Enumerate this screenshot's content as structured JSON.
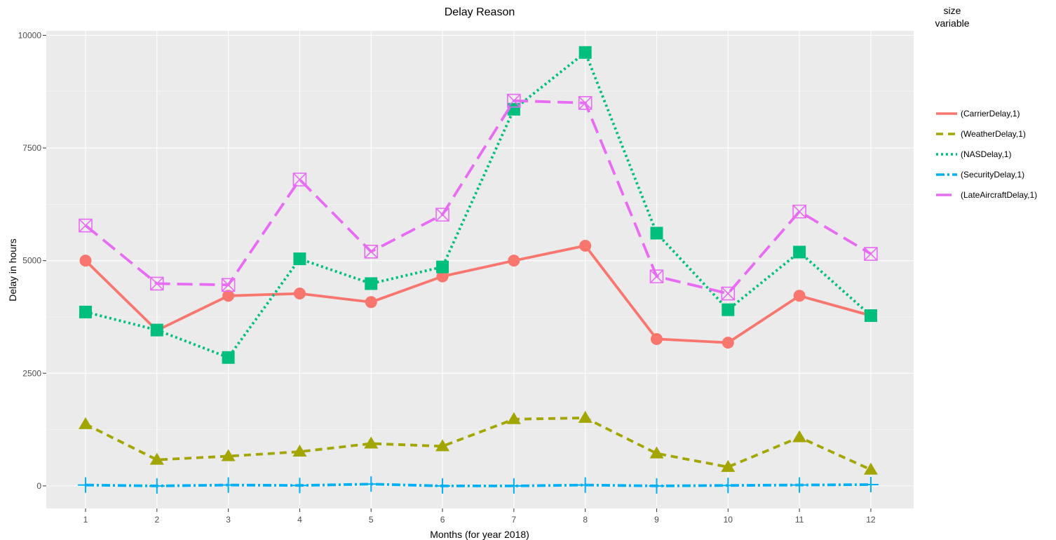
{
  "chart_data": {
    "type": "line",
    "title": "Delay Reason",
    "xlabel": "Months (for year 2018)",
    "ylabel": "Delay in hours",
    "categories": [
      "1",
      "2",
      "3",
      "4",
      "5",
      "6",
      "7",
      "8",
      "9",
      "10",
      "11",
      "12"
    ],
    "xlim": [
      0.45,
      12.6
    ],
    "ylim": [
      -500,
      10100
    ],
    "yticks": [
      0,
      2500,
      5000,
      7500,
      10000
    ],
    "grid": true,
    "legend": {
      "title_line1": "size",
      "title_line2": "variable",
      "placement": "right"
    },
    "series": [
      {
        "name": "(CarrierDelay,1)",
        "color": "#f8766d",
        "dash": "solid",
        "marker": "circle",
        "values": [
          5000,
          3450,
          4220,
          4270,
          4080,
          4650,
          5000,
          5330,
          3260,
          3180,
          4220,
          3780
        ]
      },
      {
        "name": "(WeatherDelay,1)",
        "color": "#a3a500",
        "dash": "dash",
        "marker": "triangle",
        "values": [
          1370,
          580,
          660,
          760,
          940,
          880,
          1480,
          1510,
          720,
          420,
          1080,
          360
        ]
      },
      {
        "name": "(NASDelay,1)",
        "color": "#00bf7d",
        "dash": "dot",
        "marker": "square",
        "values": [
          3860,
          3460,
          2850,
          5040,
          4490,
          4860,
          8360,
          9620,
          5610,
          3910,
          5190,
          3780
        ]
      },
      {
        "name": "(SecurityDelay,1)",
        "color": "#00b0f6",
        "dash": "dashdot",
        "marker": "cross",
        "values": [
          20,
          0,
          20,
          10,
          40,
          0,
          0,
          20,
          0,
          10,
          20,
          30
        ]
      },
      {
        "name": "(LateAircraftDelay,1)",
        "color": "#e76bf3",
        "dash": "longdash",
        "marker": "square-x",
        "values": [
          5780,
          4490,
          4460,
          6800,
          5200,
          6020,
          8550,
          8500,
          4650,
          4270,
          6090,
          5150
        ]
      }
    ]
  }
}
